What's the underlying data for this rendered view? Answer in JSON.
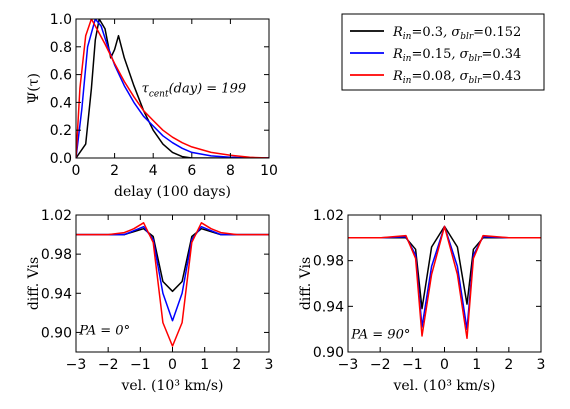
{
  "chart_data": [
    {
      "type": "line",
      "panel": "top-left",
      "xlabel": "delay (100 days)",
      "ylabel": "Ψ(τ)",
      "xlim": [
        0,
        10
      ],
      "ylim": [
        0,
        1.0
      ],
      "xticks": [
        0,
        2,
        4,
        6,
        8,
        10
      ],
      "yticks": [
        0.0,
        0.2,
        0.4,
        0.6,
        0.8,
        1.0
      ],
      "xtick_labels": [
        "0",
        "2",
        "4",
        "6",
        "8",
        "10"
      ],
      "ytick_labels": [
        "0.0",
        "0.2",
        "0.4",
        "0.6",
        "0.8",
        "1.0"
      ],
      "annotations": [
        {
          "text_main": "τ",
          "text_sub": "cent",
          "text_rest": "(day) = 199",
          "x": 3.4,
          "y": 0.47
        }
      ],
      "grid": false,
      "series": [
        {
          "name": "R_in=0.3, σ_blr=0.152",
          "color": "#000000",
          "x": [
            0,
            0.5,
            0.8,
            1.0,
            1.2,
            1.5,
            1.8,
            2.0,
            2.2,
            2.5,
            3.0,
            3.5,
            4.0,
            4.5,
            5.0,
            5.5,
            6.0,
            7.0,
            8.0,
            10.0
          ],
          "y": [
            0,
            0.1,
            0.5,
            0.85,
            1.0,
            0.93,
            0.72,
            0.78,
            0.88,
            0.72,
            0.52,
            0.34,
            0.2,
            0.1,
            0.04,
            0.01,
            0,
            0,
            0,
            0
          ]
        },
        {
          "name": "R_in=0.15, σ_blr=0.34",
          "color": "#0000ff",
          "x": [
            0,
            0.3,
            0.6,
            1.0,
            1.3,
            1.6,
            2.0,
            2.5,
            3.0,
            3.5,
            4.0,
            4.5,
            5.0,
            5.5,
            6.0,
            7.0,
            8.0,
            9.0,
            10.0
          ],
          "y": [
            0,
            0.35,
            0.8,
            1.0,
            0.95,
            0.82,
            0.67,
            0.52,
            0.4,
            0.3,
            0.23,
            0.16,
            0.11,
            0.07,
            0.04,
            0.015,
            0.005,
            0,
            0
          ]
        },
        {
          "name": "R_in=0.08, σ_blr=0.43",
          "color": "#ff0000",
          "x": [
            0,
            0.2,
            0.5,
            0.8,
            1.0,
            1.5,
            2.0,
            2.5,
            3.0,
            3.5,
            4.0,
            4.5,
            5.0,
            5.5,
            6.0,
            7.0,
            8.0,
            9.0,
            10.0
          ],
          "y": [
            0,
            0.5,
            0.88,
            1.0,
            0.95,
            0.82,
            0.68,
            0.55,
            0.44,
            0.34,
            0.27,
            0.2,
            0.15,
            0.11,
            0.08,
            0.04,
            0.02,
            0.005,
            0
          ]
        }
      ]
    },
    {
      "type": "line",
      "panel": "bottom-left",
      "xlabel": "vel. (10³ km/s)",
      "ylabel": "diff. Vis",
      "xlim": [
        -3,
        3
      ],
      "ylim": [
        0.88,
        1.02
      ],
      "xticks": [
        -3,
        -2,
        -1,
        0,
        1,
        2,
        3
      ],
      "yticks": [
        0.9,
        0.94,
        0.98,
        1.02
      ],
      "xtick_labels": [
        "−3",
        "−2",
        "−1",
        "0",
        "1",
        "2",
        "3"
      ],
      "ytick_labels": [
        "0.90",
        "0.94",
        "0.98",
        "1.02"
      ],
      "annotations": [
        {
          "text": "PA = 0°",
          "x": -2.9,
          "y": 0.898
        }
      ],
      "grid": false,
      "series": [
        {
          "name": "R_in=0.3, σ_blr=0.152",
          "color": "#000000",
          "x": [
            -3,
            -2.5,
            -2,
            -1.5,
            -1.2,
            -0.9,
            -0.6,
            -0.3,
            0,
            0.3,
            0.6,
            0.9,
            1.2,
            1.5,
            2,
            2.5,
            3
          ],
          "y": [
            1.0,
            1.0,
            1.0,
            1.0,
            1.003,
            1.006,
            0.998,
            0.952,
            0.942,
            0.952,
            0.998,
            1.006,
            1.003,
            1.0,
            1.0,
            1.0,
            1.0
          ]
        },
        {
          "name": "R_in=0.15, σ_blr=0.34",
          "color": "#0000ff",
          "x": [
            -3,
            -2.5,
            -2,
            -1.5,
            -1.2,
            -0.9,
            -0.6,
            -0.3,
            0,
            0.3,
            0.6,
            0.9,
            1.2,
            1.5,
            2,
            2.5,
            3
          ],
          "y": [
            1.0,
            1.0,
            1.0,
            1.0,
            1.004,
            1.008,
            0.995,
            0.94,
            0.912,
            0.94,
            0.995,
            1.008,
            1.004,
            1.0,
            1.0,
            1.0,
            1.0
          ]
        },
        {
          "name": "R_in=0.08, σ_blr=0.43",
          "color": "#ff0000",
          "x": [
            -3,
            -2.5,
            -2,
            -1.5,
            -1.2,
            -0.9,
            -0.6,
            -0.3,
            0,
            0.3,
            0.6,
            0.9,
            1.2,
            1.5,
            2,
            2.5,
            3
          ],
          "y": [
            1.0,
            1.0,
            1.0,
            1.002,
            1.006,
            1.012,
            0.992,
            0.91,
            0.886,
            0.91,
            0.992,
            1.012,
            1.006,
            1.002,
            1.0,
            1.0,
            1.0
          ]
        }
      ]
    },
    {
      "type": "line",
      "panel": "bottom-right",
      "xlabel": "vel. (10³ km/s)",
      "ylabel": "diff. Vis",
      "xlim": [
        -3,
        3
      ],
      "ylim": [
        0.9,
        1.02
      ],
      "xticks": [
        -3,
        -2,
        -1,
        0,
        1,
        2,
        3
      ],
      "yticks": [
        0.9,
        0.94,
        0.98,
        1.02
      ],
      "xtick_labels": [
        "−3",
        "−2",
        "−1",
        "0",
        "1",
        "2",
        "3"
      ],
      "ytick_labels": [
        "0.90",
        "0.94",
        "0.98",
        "1.02"
      ],
      "annotations": [
        {
          "text": "PA = 90°",
          "x": -2.9,
          "y": 0.912
        }
      ],
      "grid": false,
      "series": [
        {
          "name": "R_in=0.3, σ_blr=0.152",
          "color": "#000000",
          "x": [
            -3,
            -2,
            -1.2,
            -0.9,
            -0.7,
            -0.4,
            0,
            0.4,
            0.7,
            0.9,
            1.2,
            2,
            3
          ],
          "y": [
            1.0,
            1.0,
            1.0,
            0.99,
            0.938,
            0.992,
            1.01,
            0.992,
            0.942,
            0.99,
            1.0,
            1.0,
            1.0
          ]
        },
        {
          "name": "R_in=0.15, σ_blr=0.34",
          "color": "#0000ff",
          "x": [
            -3,
            -2,
            -1.2,
            -0.9,
            -0.7,
            -0.4,
            0,
            0.4,
            0.7,
            0.9,
            1.2,
            2,
            3
          ],
          "y": [
            1.0,
            1.0,
            1.001,
            0.985,
            0.922,
            0.975,
            1.01,
            0.975,
            0.92,
            0.985,
            1.001,
            1.0,
            1.0
          ]
        },
        {
          "name": "R_in=0.08, σ_blr=0.43",
          "color": "#ff0000",
          "x": [
            -3,
            -2,
            -1.2,
            -0.9,
            -0.7,
            -0.4,
            0,
            0.4,
            0.7,
            0.9,
            1.2,
            2,
            3
          ],
          "y": [
            1.0,
            1.0,
            1.002,
            0.982,
            0.914,
            0.968,
            1.01,
            0.968,
            0.912,
            0.982,
            1.002,
            1.0,
            1.0
          ]
        }
      ]
    }
  ],
  "legend": {
    "placement": "top-right",
    "entries": [
      {
        "color": "#000000",
        "r_sub": "in",
        "r_val": "0.3",
        "s_sub": "blr",
        "s_val": "0.152"
      },
      {
        "color": "#0000ff",
        "r_sub": "in",
        "r_val": "0.15",
        "s_sub": "blr",
        "s_val": "0.34"
      },
      {
        "color": "#ff0000",
        "r_sub": "in",
        "r_val": "0.08",
        "s_sub": "blr",
        "s_val": "0.43"
      }
    ]
  }
}
